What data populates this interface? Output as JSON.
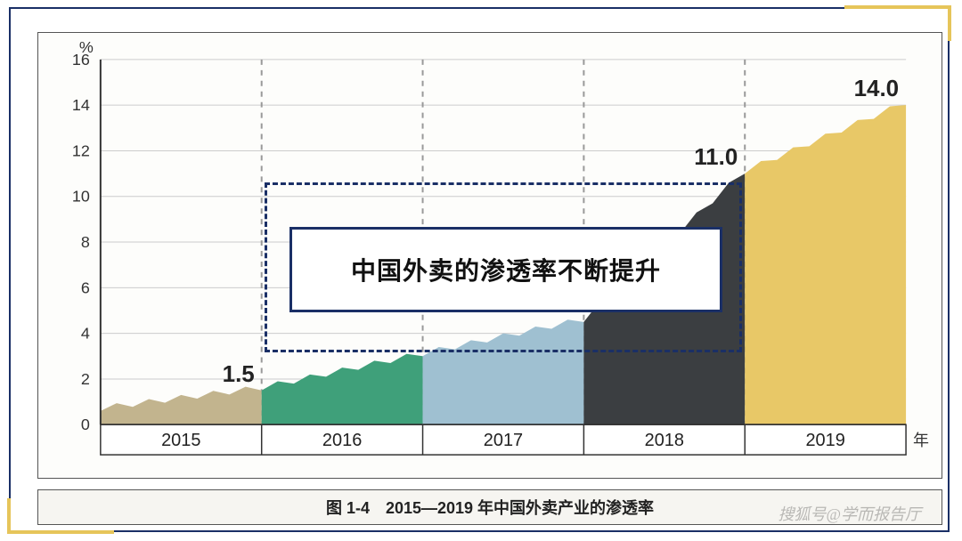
{
  "frame": {
    "border_color": "#1a2f66",
    "accent_color": "#e6c55a",
    "panel_bg": "#fdfdfb",
    "caption_bg": "#f6f5f1"
  },
  "chart": {
    "type": "area-step",
    "y_unit": "%",
    "x_unit": "年",
    "ylim": [
      0,
      16
    ],
    "ytick_step": 2,
    "categories": [
      "2015",
      "2016",
      "2017",
      "2018",
      "2019"
    ],
    "start_values": [
      0.6,
      1.5,
      3.0,
      4.5,
      11.0
    ],
    "end_values": [
      1.5,
      3.0,
      4.5,
      11.0,
      14.0
    ],
    "labels": [
      "1.5",
      "",
      "",
      "11.0",
      "14.0"
    ],
    "label_fontsize": 26,
    "colors": [
      "#c2b48e",
      "#3fa07a",
      "#9fc0d1",
      "#3b3e41",
      "#e8c867"
    ],
    "axis_color": "#333333",
    "grid_color": "#cccccc",
    "divider_dash_color": "#999999",
    "tick_fontsize": 18,
    "background_color": "#fdfdfb"
  },
  "overlay": {
    "text": "中国外卖的渗透率不断提升"
  },
  "caption": "图 1-4　2015—2019 年中国外卖产业的渗透率",
  "watermark": "搜狐号@学而报告厅"
}
